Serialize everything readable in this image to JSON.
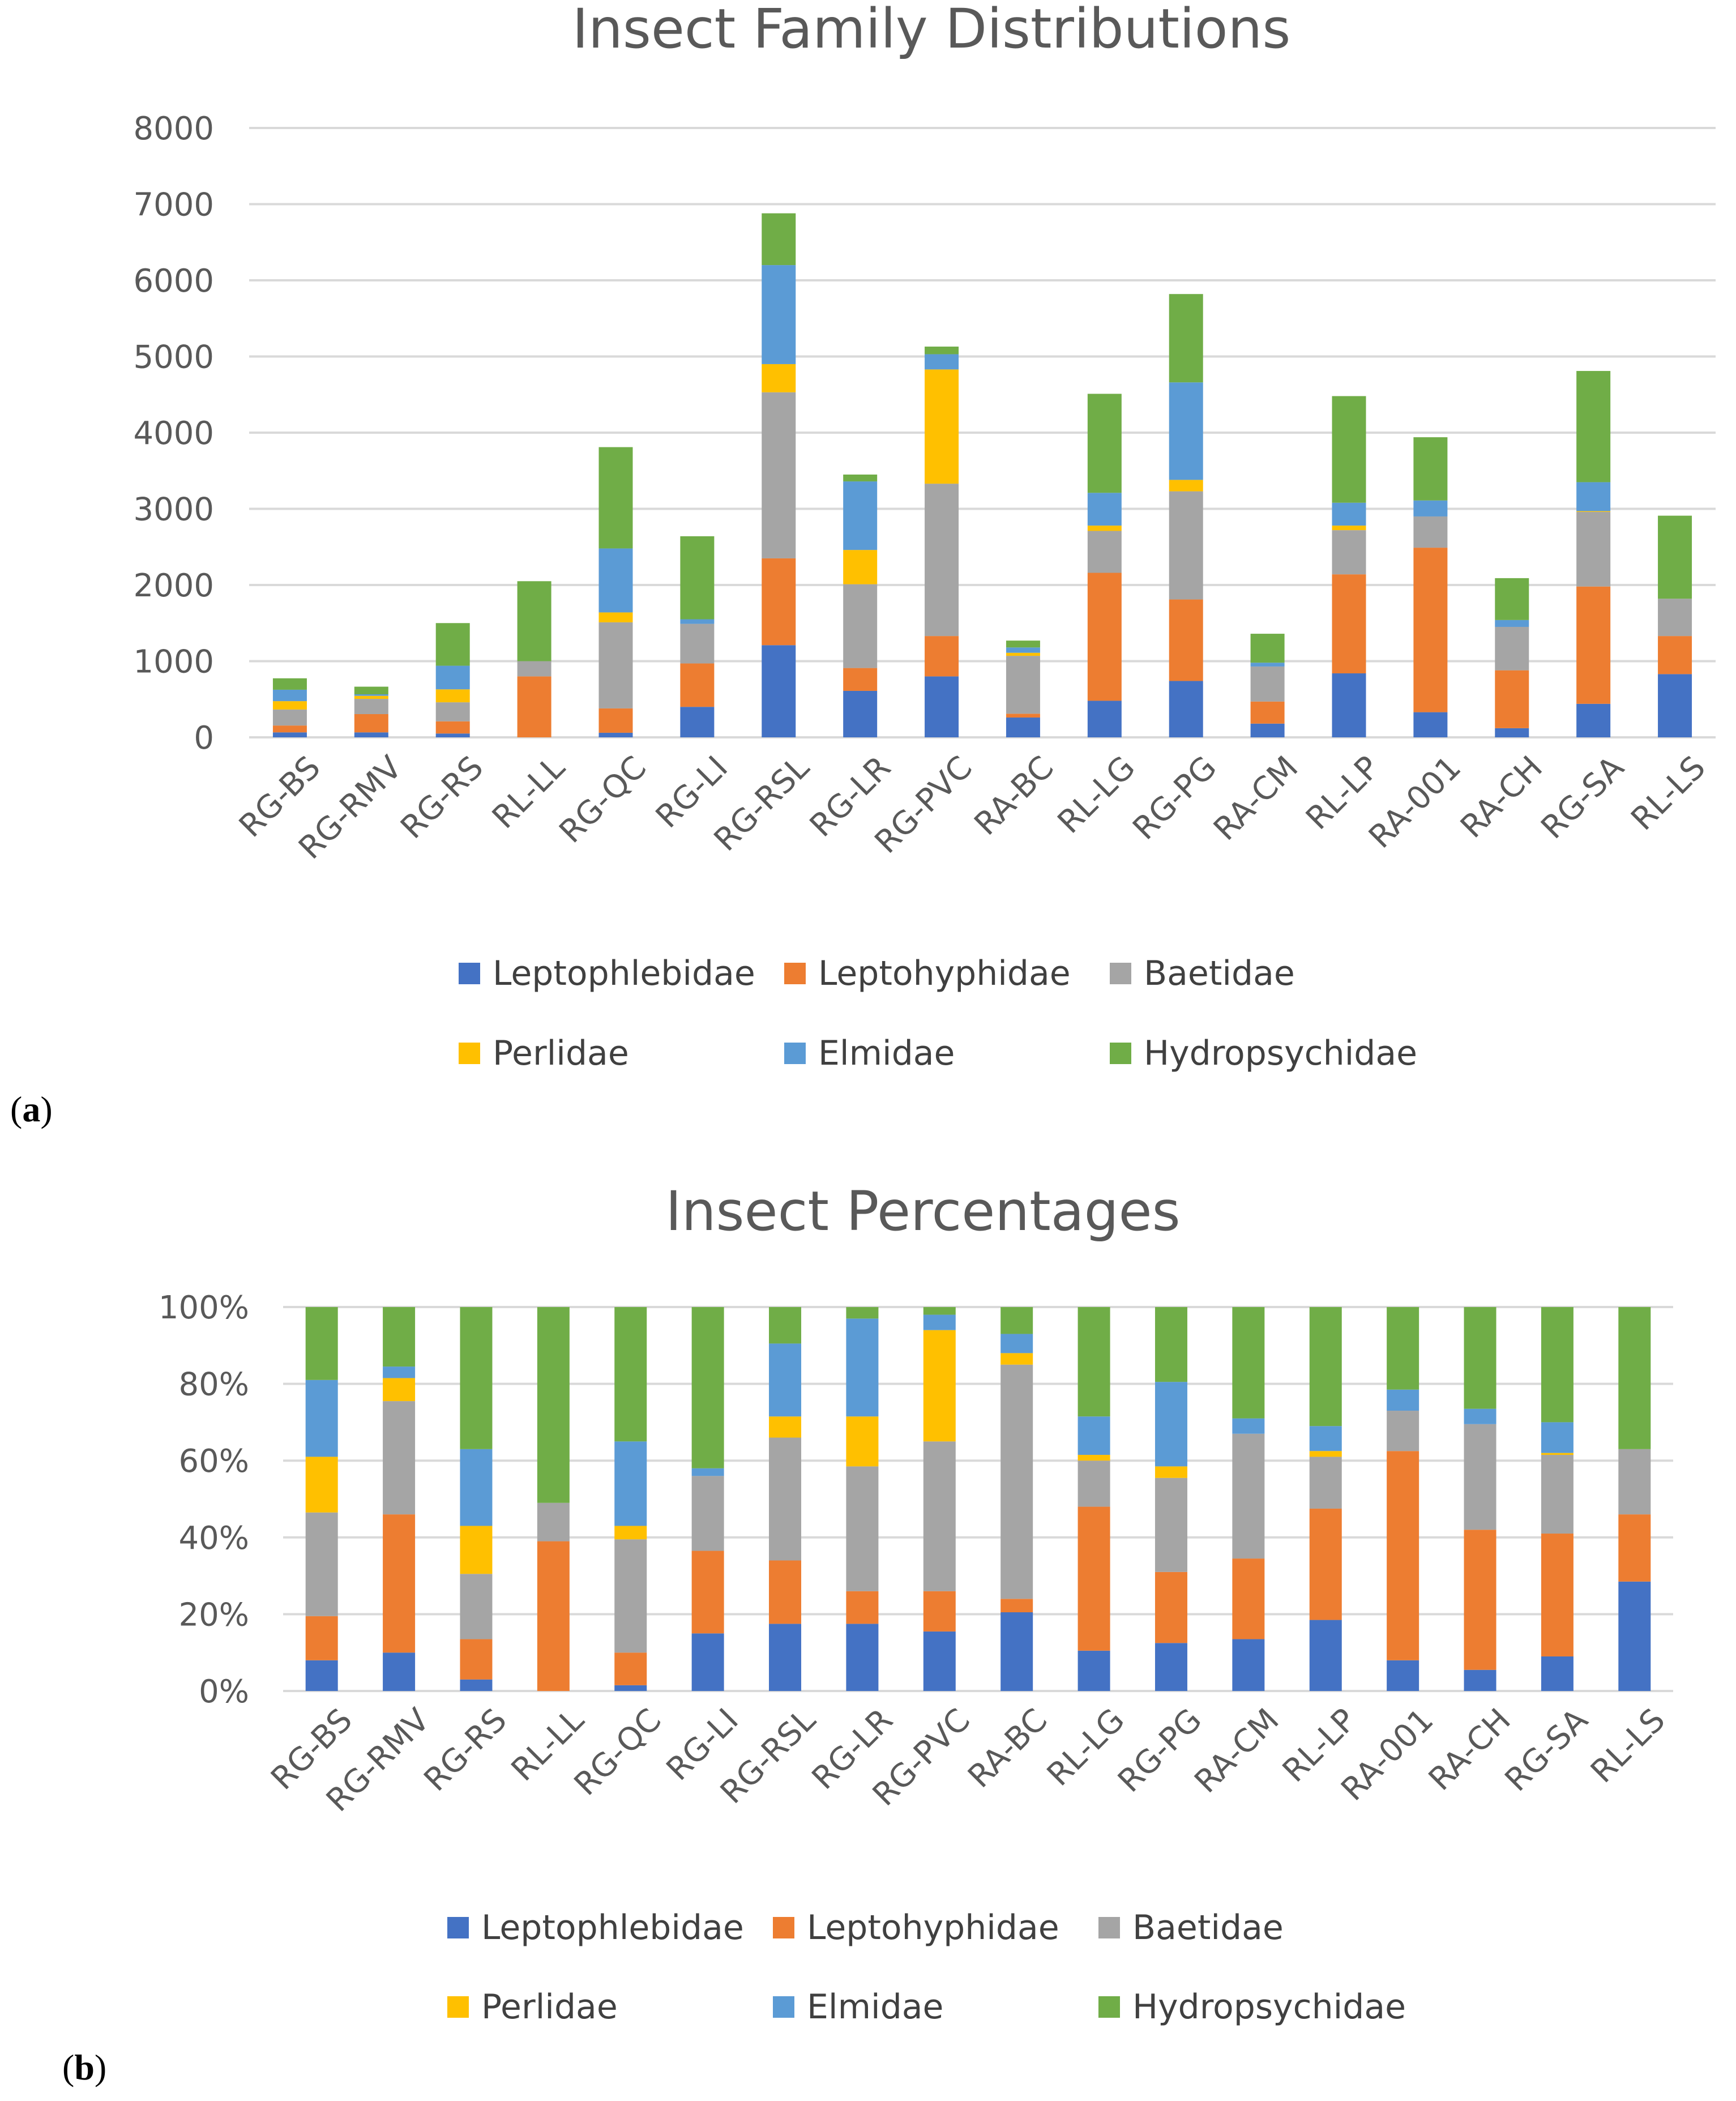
{
  "colors": {
    "Leptophlebidae": "#4472C4",
    "Leptohyphidae": "#ED7D31",
    "Baetidae": "#A5A5A5",
    "Perlidae": "#FFC000",
    "Elmidae": "#5B9BD5",
    "Hydropsychidae": "#70AD47"
  },
  "figure": {
    "panel_a_label": "a",
    "panel_b_label": "b"
  },
  "chart_data": [
    {
      "type": "bar",
      "stacked": true,
      "title": "Insect Family Distributions",
      "xlabel": "",
      "ylabel": "",
      "ylim": [
        0,
        8000
      ],
      "yticks": [
        0,
        1000,
        2000,
        3000,
        4000,
        5000,
        6000,
        7000,
        8000
      ],
      "ytick_labels": [
        "0",
        "1000",
        "2000",
        "3000",
        "4000",
        "5000",
        "6000",
        "7000",
        "8000"
      ],
      "grid": true,
      "legend_position": "bottom",
      "categories": [
        "RG-BS",
        "RG-RMV",
        "RG-RS",
        "RL-LL",
        "RG-QC",
        "RG-LI",
        "RG-RSL",
        "RG-LR",
        "RG-PVC",
        "RA-BC",
        "RL-LG",
        "RG-PG",
        "RA-CM",
        "RL-LP",
        "RA-001",
        "RA-CH",
        "RG-SA",
        "RL-LS"
      ],
      "series": [
        {
          "name": "Leptophlebidae",
          "values": [
            65,
            65,
            50,
            0,
            60,
            400,
            1210,
            610,
            800,
            260,
            480,
            740,
            180,
            840,
            330,
            120,
            440,
            830
          ]
        },
        {
          "name": "Leptohyphidae",
          "values": [
            90,
            240,
            160,
            800,
            320,
            570,
            1140,
            300,
            530,
            50,
            1680,
            1070,
            290,
            1300,
            2160,
            760,
            1540,
            500
          ]
        },
        {
          "name": "Baetidae",
          "values": [
            210,
            200,
            250,
            200,
            1130,
            520,
            2180,
            1100,
            2000,
            760,
            550,
            1420,
            460,
            580,
            410,
            570,
            980,
            490
          ]
        },
        {
          "name": "Perlidae",
          "values": [
            110,
            40,
            170,
            0,
            130,
            0,
            370,
            450,
            1500,
            40,
            70,
            150,
            0,
            60,
            0,
            0,
            10,
            0
          ]
        },
        {
          "name": "Elmidae",
          "values": [
            150,
            20,
            310,
            0,
            840,
            60,
            1300,
            900,
            200,
            70,
            430,
            1280,
            50,
            300,
            210,
            90,
            380,
            0
          ]
        },
        {
          "name": "Hydropsychidae",
          "values": [
            150,
            100,
            560,
            1050,
            1330,
            1090,
            680,
            90,
            100,
            90,
            1300,
            1160,
            380,
            1400,
            830,
            550,
            1460,
            1090
          ]
        }
      ]
    },
    {
      "type": "bar",
      "stacked": true,
      "percent": true,
      "title": "Insect Percentages",
      "xlabel": "",
      "ylabel": "",
      "ylim": [
        0,
        100
      ],
      "yticks": [
        0,
        20,
        40,
        60,
        80,
        100
      ],
      "ytick_labels": [
        "0%",
        "20%",
        "40%",
        "60%",
        "80%",
        "100%"
      ],
      "grid": true,
      "legend_position": "bottom",
      "categories": [
        "RG-BS",
        "RG-RMV",
        "RG-RS",
        "RL-LL",
        "RG-QC",
        "RG-LI",
        "RG-RSL",
        "RG-LR",
        "RG-PVC",
        "RA-BC",
        "RL-LG",
        "RG-PG",
        "RA-CM",
        "RL-LP",
        "RA-001",
        "RA-CH",
        "RG-SA",
        "RL-LS"
      ],
      "series": [
        {
          "name": "Leptophlebidae",
          "values": [
            8,
            10,
            3,
            0,
            1.5,
            15,
            17.5,
            17.5,
            15.5,
            20.5,
            10.5,
            12.5,
            13.5,
            18.5,
            8,
            5.5,
            9,
            28.5
          ]
        },
        {
          "name": "Leptohyphidae",
          "values": [
            11.5,
            36,
            10.5,
            39,
            8.5,
            21.5,
            16.5,
            8.5,
            10.5,
            3.5,
            37.5,
            18.5,
            21,
            29,
            54.5,
            36.5,
            32,
            17.5
          ]
        },
        {
          "name": "Baetidae",
          "values": [
            27,
            29.5,
            17,
            10,
            29.5,
            19.5,
            32,
            32.5,
            39,
            61,
            12,
            24.5,
            32.5,
            13.5,
            10.5,
            27.5,
            20.5,
            17
          ]
        },
        {
          "name": "Perlidae",
          "values": [
            14.5,
            6,
            12.5,
            0,
            3.5,
            0,
            5.5,
            13,
            29,
            3,
            1.5,
            3,
            0,
            1.5,
            0,
            0,
            0.5,
            0
          ]
        },
        {
          "name": "Elmidae",
          "values": [
            20,
            3,
            20,
            0,
            22,
            2,
            19,
            25.5,
            4,
            5,
            10,
            22,
            4,
            6.5,
            5.5,
            4,
            8,
            0
          ]
        },
        {
          "name": "Hydropsychidae",
          "values": [
            19,
            15.5,
            37,
            51,
            35,
            42,
            9.5,
            3,
            2,
            7,
            28.5,
            19.5,
            29,
            31,
            21.5,
            26.5,
            30,
            37
          ]
        }
      ]
    }
  ]
}
